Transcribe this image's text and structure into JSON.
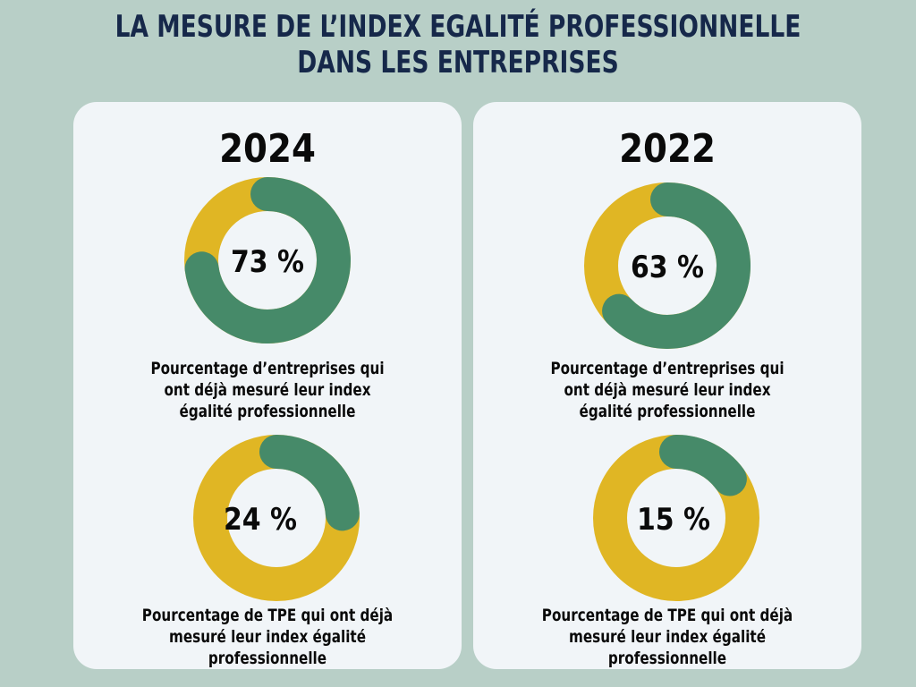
{
  "title": {
    "line1": "LA MESURE DE L’INDEX EGALITÉ PROFESSIONNELLE",
    "line2": "DANS LES ENTREPRISES"
  },
  "colors": {
    "background": "#b8cfc7",
    "card": "#f1f5f8",
    "measured": "#468a69",
    "not_measured": "#e0b624",
    "title": "#16284a"
  },
  "chart_data": [
    {
      "type": "pie",
      "year": "2024",
      "title": "2024",
      "value_label": "73 %",
      "values": [
        73,
        27
      ],
      "caption_lines": [
        "Pourcentage d’entreprises qui",
        "ont déjà mesuré leur index",
        "égalité professionnelle"
      ]
    },
    {
      "type": "pie",
      "year": "2024",
      "title": "2024",
      "value_label": "24 %",
      "values": [
        24,
        76
      ],
      "caption_lines": [
        "Pourcentage de TPE qui ont déjà",
        "mesuré leur index égalité",
        "professionnelle"
      ]
    },
    {
      "type": "pie",
      "year": "2022",
      "title": "2022",
      "value_label": "63 %",
      "values": [
        63,
        37
      ],
      "caption_lines": [
        "Pourcentage d’entreprises qui",
        "ont déjà mesuré leur index",
        "égalité professionnelle"
      ]
    },
    {
      "type": "pie",
      "year": "2022",
      "title": "2022",
      "value_label": "15 %",
      "values": [
        15,
        85
      ],
      "caption_lines": [
        "Pourcentage de TPE qui ont déjà",
        "mesuré leur index égalité",
        "professionnelle"
      ]
    }
  ]
}
